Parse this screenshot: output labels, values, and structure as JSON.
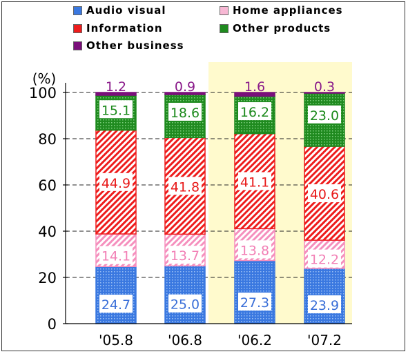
{
  "chart_data": {
    "type": "bar",
    "stacked": true,
    "categories": [
      "'05.8",
      "'06.8",
      "'06.2",
      "'07.2"
    ],
    "highlighted_categories": [
      "'06.2",
      "'07.2"
    ],
    "highlight_color": "#fffacd",
    "y_unit_label": "(%)",
    "ylim": [
      0,
      100
    ],
    "yticks": [
      0,
      20,
      40,
      60,
      80,
      100
    ],
    "grid": "dashed horizontal",
    "legend_position": "top",
    "series": [
      {
        "name": "Audio visual",
        "values": [
          24.7,
          25.0,
          27.3,
          23.9
        ],
        "color": "#3a78e0",
        "label_color": "#3a6fd8",
        "pattern": "dots"
      },
      {
        "name": "Home appliances",
        "values": [
          14.1,
          13.7,
          13.8,
          12.2
        ],
        "color": "#f58fbd",
        "label_color": "#f27fb5",
        "pattern": "hatch"
      },
      {
        "name": "Information",
        "values": [
          44.9,
          41.8,
          41.1,
          40.6
        ],
        "color": "#ee1c1c",
        "label_color": "#e81818",
        "pattern": "hatch"
      },
      {
        "name": "Other products",
        "values": [
          15.1,
          18.6,
          16.2,
          23.0
        ],
        "color": "#1f8a1f",
        "label_color": "#1c8a1c",
        "pattern": "dots"
      },
      {
        "name": "Other business",
        "values": [
          1.2,
          0.9,
          1.6,
          0.3
        ],
        "color": "#7a0f7a",
        "label_color": "#8a1a8a",
        "pattern": "solid"
      }
    ]
  }
}
